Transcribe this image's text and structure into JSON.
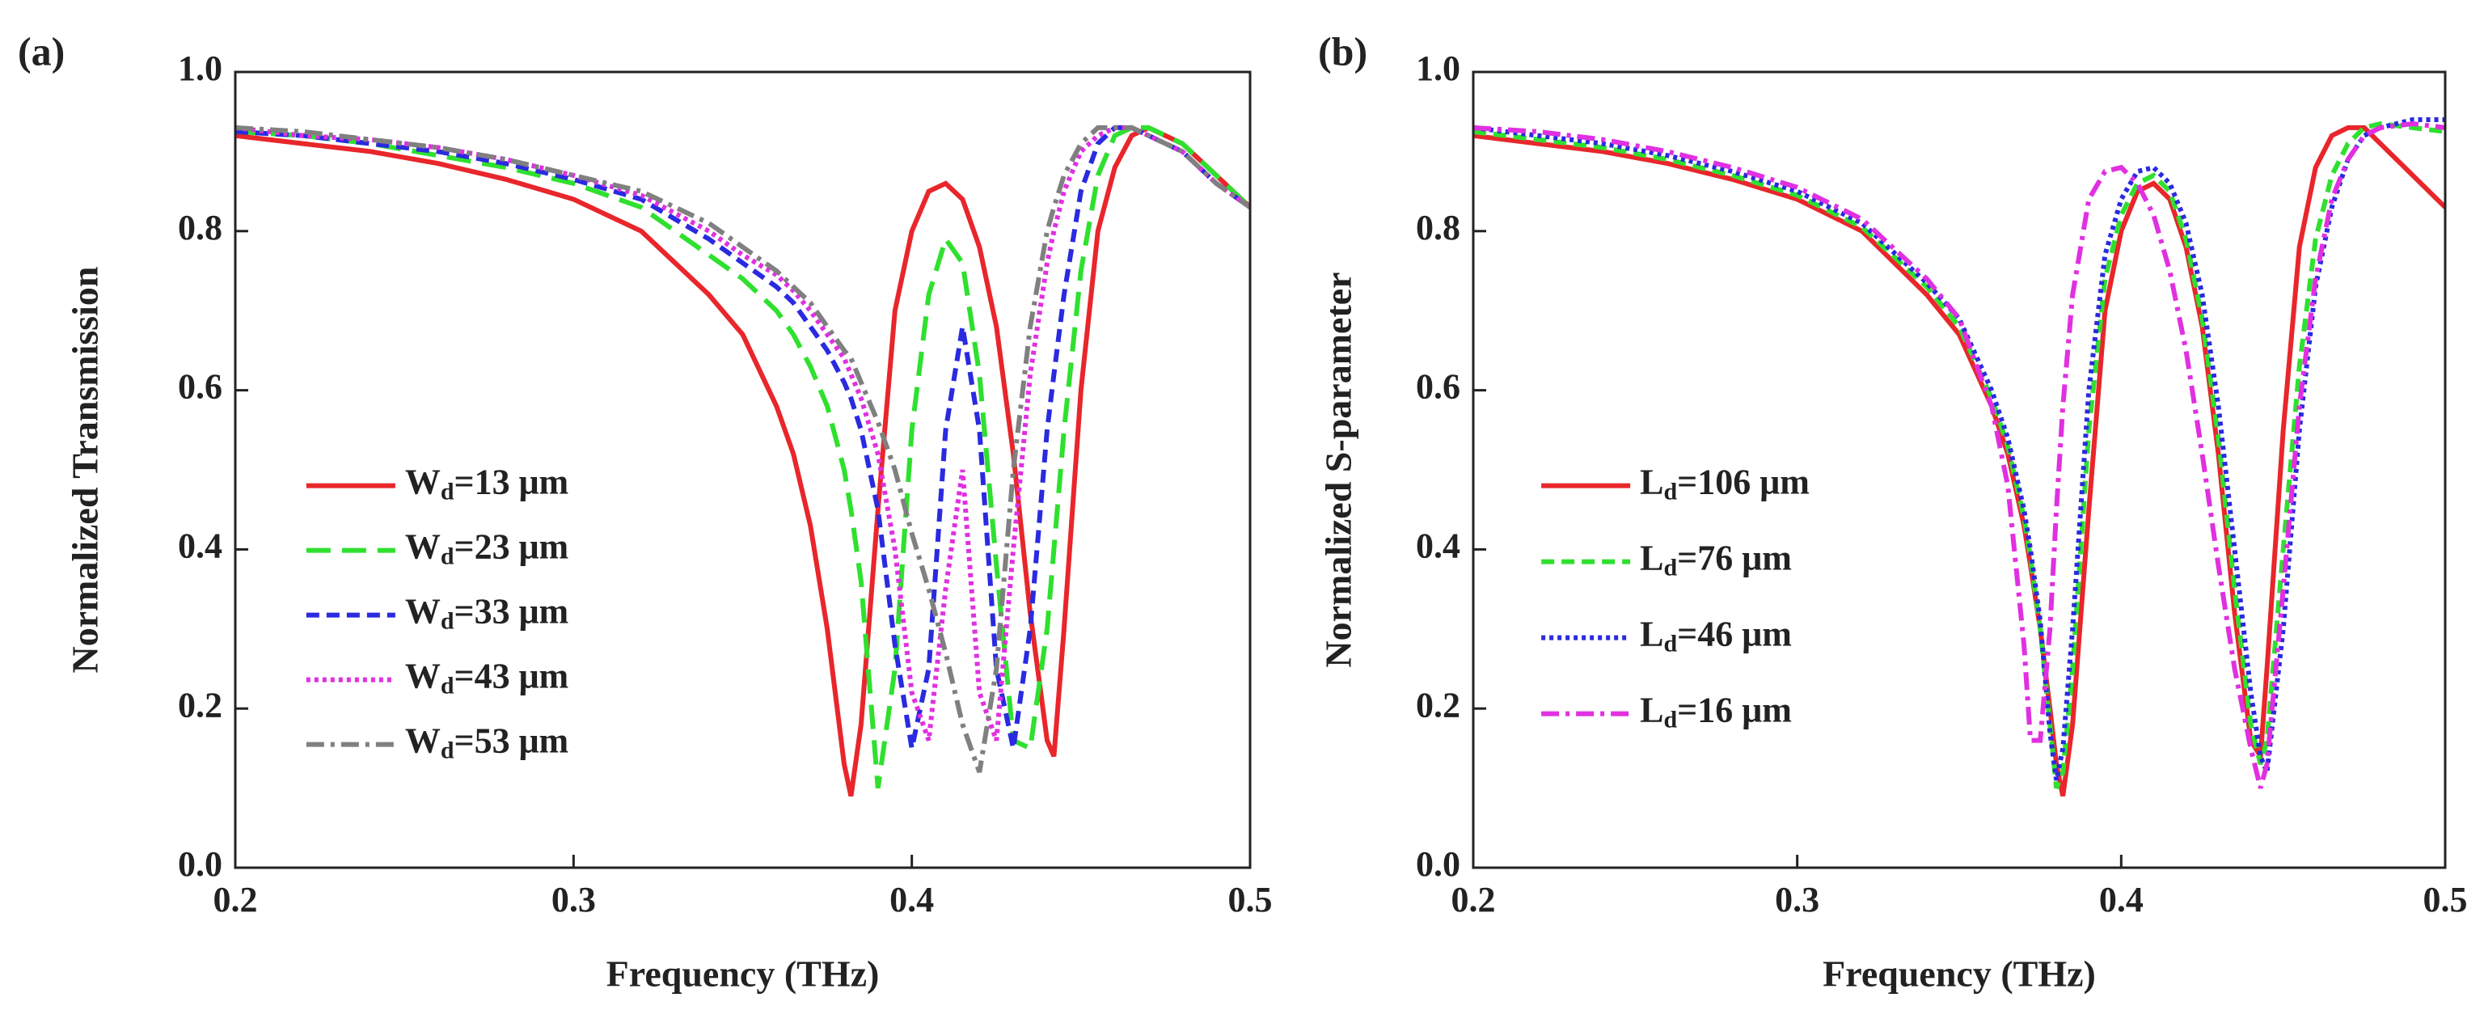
{
  "chart_data": [
    {
      "type": "line",
      "panel_label": "(a)",
      "x_label": "Frequency (THz)",
      "y_label": "Normalized Transmission",
      "xlim": [
        0.2,
        0.5
      ],
      "ylim": [
        0,
        1
      ],
      "xticks": [
        0.2,
        0.3,
        0.4,
        0.5
      ],
      "yticks": [
        {
          "value": 0,
          "label": "0.0"
        },
        {
          "value": 0.2,
          "label": "0.2"
        },
        {
          "value": 0.4,
          "label": "0.4"
        },
        {
          "value": 0.6,
          "label": "0.6"
        },
        {
          "value": 0.8,
          "label": "0.8"
        },
        {
          "value": 1,
          "label": "1.0"
        }
      ],
      "legend": "center left",
      "x": [
        0.2,
        0.22,
        0.24,
        0.26,
        0.28,
        0.3,
        0.32,
        0.34,
        0.35,
        0.36,
        0.365,
        0.37,
        0.375,
        0.38,
        0.382,
        0.385,
        0.39,
        0.395,
        0.4,
        0.405,
        0.41,
        0.415,
        0.42,
        0.425,
        0.43,
        0.435,
        0.44,
        0.442,
        0.445,
        0.45,
        0.455,
        0.46,
        0.465,
        0.47,
        0.48,
        0.49,
        0.5
      ],
      "series": [
        {
          "name": "Wd=13 μm",
          "color": "#e8262b",
          "style": "solid",
          "values": [
            0.92,
            0.91,
            0.9,
            0.885,
            0.865,
            0.84,
            0.8,
            0.72,
            0.67,
            0.58,
            0.52,
            0.43,
            0.3,
            0.13,
            0.09,
            0.18,
            0.45,
            0.7,
            0.8,
            0.85,
            0.86,
            0.84,
            0.78,
            0.68,
            0.52,
            0.32,
            0.16,
            0.14,
            0.3,
            0.6,
            0.8,
            0.88,
            0.92,
            0.93,
            0.91,
            0.87,
            0.83
          ]
        },
        {
          "name": "Wd=23 μm",
          "color": "#2fe02f",
          "style": "dashed",
          "values": [
            0.925,
            0.92,
            0.91,
            0.895,
            0.88,
            0.86,
            0.83,
            0.77,
            0.74,
            0.7,
            0.67,
            0.63,
            0.58,
            0.5,
            0.45,
            0.36,
            0.1,
            0.25,
            0.55,
            0.72,
            0.79,
            0.76,
            0.62,
            0.38,
            0.16,
            0.15,
            0.3,
            0.4,
            0.55,
            0.75,
            0.87,
            0.92,
            0.93,
            0.93,
            0.91,
            0.87,
            0.83
          ]
        },
        {
          "name": "Wd=33 μm",
          "color": "#2a2ae0",
          "style": "short-dashed",
          "values": [
            0.925,
            0.92,
            0.91,
            0.9,
            0.885,
            0.865,
            0.84,
            0.79,
            0.76,
            0.73,
            0.71,
            0.68,
            0.65,
            0.61,
            0.59,
            0.55,
            0.45,
            0.28,
            0.15,
            0.25,
            0.55,
            0.68,
            0.55,
            0.25,
            0.15,
            0.3,
            0.55,
            0.62,
            0.72,
            0.85,
            0.91,
            0.93,
            0.93,
            0.92,
            0.9,
            0.86,
            0.83
          ]
        },
        {
          "name": "Wd=43 μm",
          "color": "#e030e0",
          "style": "dotted",
          "values": [
            0.93,
            0.92,
            0.915,
            0.905,
            0.89,
            0.87,
            0.845,
            0.8,
            0.77,
            0.745,
            0.725,
            0.7,
            0.67,
            0.64,
            0.62,
            0.59,
            0.52,
            0.4,
            0.22,
            0.16,
            0.35,
            0.5,
            0.22,
            0.16,
            0.4,
            0.62,
            0.76,
            0.8,
            0.85,
            0.9,
            0.92,
            0.93,
            0.93,
            0.92,
            0.9,
            0.86,
            0.83
          ]
        },
        {
          "name": "Wd=53 μm",
          "color": "#808080",
          "style": "dash-dot",
          "values": [
            0.93,
            0.925,
            0.915,
            0.905,
            0.89,
            0.87,
            0.85,
            0.81,
            0.78,
            0.75,
            0.73,
            0.71,
            0.68,
            0.65,
            0.64,
            0.61,
            0.56,
            0.5,
            0.42,
            0.35,
            0.27,
            0.18,
            0.12,
            0.25,
            0.5,
            0.68,
            0.8,
            0.83,
            0.87,
            0.91,
            0.93,
            0.93,
            0.93,
            0.92,
            0.9,
            0.86,
            0.83
          ]
        }
      ]
    },
    {
      "type": "line",
      "panel_label": "(b)",
      "x_label": "Frequency (THz)",
      "y_label": "Normalized S-parameter",
      "xlim": [
        0.2,
        0.5
      ],
      "ylim": [
        0,
        1
      ],
      "xticks": [
        0.2,
        0.3,
        0.4,
        0.5
      ],
      "yticks": [
        {
          "value": 0,
          "label": "0.0"
        },
        {
          "value": 0.2,
          "label": "0.2"
        },
        {
          "value": 0.4,
          "label": "0.4"
        },
        {
          "value": 0.6,
          "label": "0.6"
        },
        {
          "value": 0.8,
          "label": "0.8"
        },
        {
          "value": 1,
          "label": "1.0"
        }
      ],
      "legend": "center left",
      "x": [
        0.2,
        0.22,
        0.24,
        0.26,
        0.28,
        0.3,
        0.32,
        0.34,
        0.35,
        0.36,
        0.365,
        0.37,
        0.372,
        0.375,
        0.378,
        0.38,
        0.382,
        0.385,
        0.39,
        0.395,
        0.4,
        0.405,
        0.41,
        0.415,
        0.42,
        0.425,
        0.43,
        0.435,
        0.44,
        0.443,
        0.445,
        0.45,
        0.455,
        0.46,
        0.465,
        0.47,
        0.475,
        0.48,
        0.49,
        0.5
      ],
      "series": [
        {
          "name": "Ld=106 μm",
          "color": "#e8262b",
          "style": "solid",
          "values": [
            0.92,
            0.91,
            0.9,
            0.885,
            0.865,
            0.84,
            0.8,
            0.72,
            0.67,
            0.58,
            0.52,
            0.43,
            0.38,
            0.3,
            0.2,
            0.13,
            0.09,
            0.18,
            0.45,
            0.7,
            0.8,
            0.85,
            0.86,
            0.84,
            0.78,
            0.68,
            0.52,
            0.32,
            0.16,
            0.14,
            0.25,
            0.55,
            0.78,
            0.88,
            0.92,
            0.93,
            0.93,
            0.91,
            0.87,
            0.83
          ]
        },
        {
          "name": "Ld=76 μm",
          "color": "#2fe02f",
          "style": "short-dashed",
          "values": [
            0.925,
            0.915,
            0.905,
            0.89,
            0.87,
            0.845,
            0.805,
            0.73,
            0.68,
            0.59,
            0.53,
            0.44,
            0.39,
            0.3,
            0.18,
            0.1,
            0.12,
            0.25,
            0.55,
            0.74,
            0.82,
            0.86,
            0.87,
            0.85,
            0.79,
            0.69,
            0.54,
            0.35,
            0.18,
            0.13,
            0.16,
            0.4,
            0.63,
            0.79,
            0.87,
            0.91,
            0.93,
            0.935,
            0.93,
            0.925
          ]
        },
        {
          "name": "Ld=46 μm",
          "color": "#2a2ae0",
          "style": "dotted",
          "values": [
            0.93,
            0.92,
            0.91,
            0.895,
            0.875,
            0.85,
            0.81,
            0.735,
            0.69,
            0.6,
            0.54,
            0.45,
            0.4,
            0.31,
            0.17,
            0.11,
            0.15,
            0.3,
            0.6,
            0.77,
            0.84,
            0.875,
            0.88,
            0.86,
            0.81,
            0.72,
            0.58,
            0.4,
            0.22,
            0.14,
            0.12,
            0.3,
            0.55,
            0.73,
            0.83,
            0.89,
            0.92,
            0.93,
            0.94,
            0.94
          ]
        },
        {
          "name": "Ld=16 μm",
          "color": "#e030e0",
          "style": "dash-dot",
          "values": [
            0.93,
            0.925,
            0.915,
            0.9,
            0.88,
            0.855,
            0.815,
            0.74,
            0.69,
            0.58,
            0.48,
            0.28,
            0.16,
            0.16,
            0.3,
            0.45,
            0.58,
            0.72,
            0.84,
            0.875,
            0.88,
            0.86,
            0.82,
            0.75,
            0.65,
            0.52,
            0.38,
            0.25,
            0.15,
            0.1,
            0.13,
            0.35,
            0.58,
            0.74,
            0.84,
            0.89,
            0.92,
            0.93,
            0.935,
            0.93
          ]
        }
      ]
    }
  ]
}
